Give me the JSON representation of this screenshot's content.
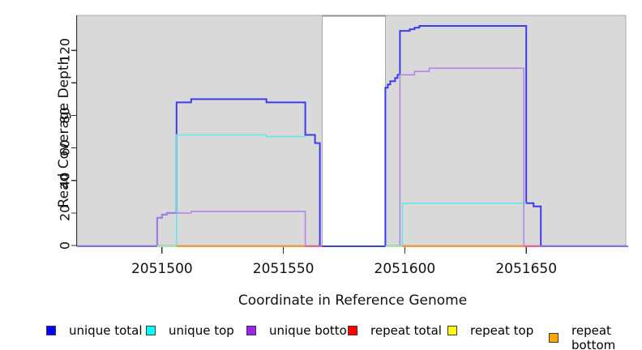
{
  "chart_data": {
    "type": "line",
    "title": "",
    "xlabel": "Coordinate in Reference Genome",
    "ylabel": "Read Coverage Depth",
    "xlim": [
      2051465,
      2051692
    ],
    "ylim": [
      0,
      141.5
    ],
    "grid": false,
    "legend_position": "bottom",
    "x_ticks": [
      {
        "value": 2051500,
        "label": "2051500"
      },
      {
        "value": 2051550,
        "label": "2051550"
      },
      {
        "value": 2051600,
        "label": "2051600"
      },
      {
        "value": 2051650,
        "label": "2051650"
      }
    ],
    "y_ticks": [
      {
        "value": 0,
        "label": "0"
      },
      {
        "value": 20,
        "label": "20"
      },
      {
        "value": 40,
        "label": "40"
      },
      {
        "value": 60,
        "label": "60"
      },
      {
        "value": 80,
        "label": "80"
      },
      {
        "value": 100,
        "label": ""
      },
      {
        "value": 120,
        "label": "120"
      }
    ],
    "background": {
      "plot_fill": "#ffffff",
      "shaded_fill": "#d9d9d9",
      "shaded_border": "#ababab",
      "gap_top_edge_color": "#8f8f8f"
    },
    "background_regions": [
      {
        "name": "covered-region-left",
        "x_start": 2051465,
        "x_end": 2051566
      },
      {
        "name": "covered-region-right",
        "x_start": 2051592,
        "x_end": 2051691
      }
    ],
    "gap_region": {
      "x_start": 2051566,
      "x_end": 2051592
    },
    "series": [
      {
        "name": "unique total",
        "color": "#3c3cee",
        "width": 2,
        "paths": [
          [
            [
              2051498,
              0
            ],
            [
              2051498,
              17
            ],
            [
              2051500,
              17
            ],
            [
              2051500,
              19
            ],
            [
              2051502,
              19
            ],
            [
              2051502,
              20
            ],
            [
              2051506,
              20
            ],
            [
              2051506,
              88
            ],
            [
              2051512,
              88
            ],
            [
              2051512,
              90
            ],
            [
              2051543,
              90
            ],
            [
              2051543,
              88
            ],
            [
              2051559,
              88
            ],
            [
              2051559,
              68
            ],
            [
              2051563,
              68
            ],
            [
              2051563,
              63
            ],
            [
              2051565,
              63
            ],
            [
              2051565,
              0
            ]
          ],
          [
            [
              2051592,
              0
            ],
            [
              2051592,
              97
            ],
            [
              2051593,
              97
            ],
            [
              2051593,
              99
            ],
            [
              2051594,
              99
            ],
            [
              2051594,
              101
            ],
            [
              2051596,
              101
            ],
            [
              2051596,
              103
            ],
            [
              2051597,
              103
            ],
            [
              2051597,
              105
            ],
            [
              2051598,
              105
            ],
            [
              2051598,
              132
            ],
            [
              2051602,
              132
            ],
            [
              2051602,
              133
            ],
            [
              2051604,
              133
            ],
            [
              2051604,
              134
            ],
            [
              2051606,
              134
            ],
            [
              2051606,
              135
            ],
            [
              2051650,
              135
            ],
            [
              2051650,
              26
            ],
            [
              2051653,
              26
            ],
            [
              2051653,
              24
            ],
            [
              2051656,
              24
            ],
            [
              2051656,
              0
            ]
          ]
        ]
      },
      {
        "name": "unique top",
        "color": "#5fe9e9",
        "width": 1.6,
        "paths": [
          [
            [
              2051506,
              0
            ],
            [
              2051506,
              68
            ],
            [
              2051543,
              68
            ],
            [
              2051543,
              67
            ],
            [
              2051559,
              67
            ]
          ],
          [
            [
              2051599,
              0
            ],
            [
              2051599,
              26
            ],
            [
              2051650,
              26
            ]
          ]
        ]
      },
      {
        "name": "unique bottom",
        "color": "#b288e8",
        "width": 1.6,
        "paths": [
          [
            [
              2051498,
              0
            ],
            [
              2051498,
              17
            ],
            [
              2051500,
              17
            ],
            [
              2051500,
              19
            ],
            [
              2051502,
              19
            ],
            [
              2051502,
              20
            ],
            [
              2051512,
              20
            ],
            [
              2051512,
              21
            ],
            [
              2051559,
              21
            ],
            [
              2051559,
              0
            ]
          ],
          [
            [
              2051598,
              0
            ],
            [
              2051598,
              105
            ],
            [
              2051604,
              105
            ],
            [
              2051604,
              107
            ],
            [
              2051610,
              107
            ],
            [
              2051610,
              109
            ],
            [
              2051649,
              109
            ],
            [
              2051649,
              0
            ]
          ]
        ]
      }
    ],
    "baseline_segments": [
      {
        "x_start": 2051465,
        "x_end": 2051498,
        "color": "#7d72ea"
      },
      {
        "x_start": 2051498,
        "x_end": 2051506,
        "color": "#a5e8aa"
      },
      {
        "x_start": 2051506,
        "x_end": 2051559,
        "color": "#ff9b1a"
      },
      {
        "x_start": 2051559,
        "x_end": 2051566,
        "color": "#ea6292"
      },
      {
        "x_start": 2051566,
        "x_end": 2051592,
        "color": "#3c3cee"
      },
      {
        "x_start": 2051592,
        "x_end": 2051599,
        "color": "#a5e8aa"
      },
      {
        "x_start": 2051599,
        "x_end": 2051649,
        "color": "#ff9b1a"
      },
      {
        "x_start": 2051649,
        "x_end": 2051656,
        "color": "#ea6292"
      },
      {
        "x_start": 2051656,
        "x_end": 2051692,
        "color": "#7d72ea"
      }
    ],
    "legend": [
      {
        "label": "unique total",
        "color": "#0000ff",
        "x": 57
      },
      {
        "label": "unique top",
        "color": "#00ffff",
        "x": 180
      },
      {
        "label": "unique bottom",
        "color": "#a020f0",
        "x": 304
      },
      {
        "label": "repeat total",
        "color": "#ff0000",
        "x": 429
      },
      {
        "label": "repeat top",
        "color": "#ffff00",
        "x": 552
      },
      {
        "label": "repeat bottom",
        "color": "#ffa500",
        "x": 677
      }
    ],
    "axis_color": "#333333"
  }
}
